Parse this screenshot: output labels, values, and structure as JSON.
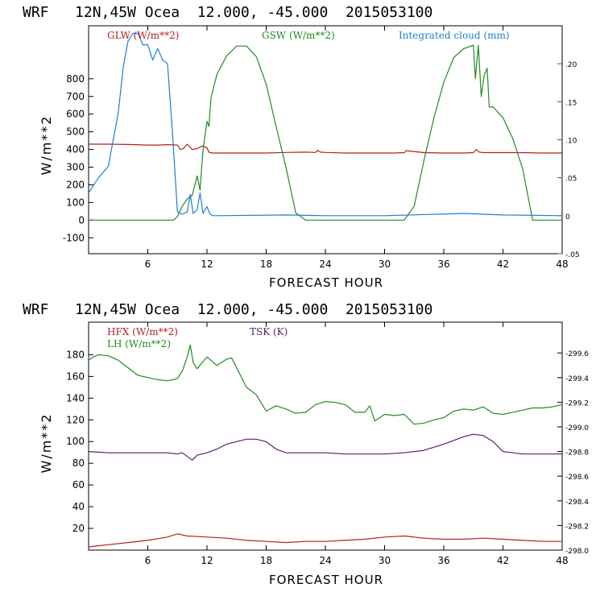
{
  "chart_data": [
    {
      "type": "line",
      "title": "WRF   12N,45W Ocea  12.000, -45.000  2015053100",
      "xlabel": "FORECAST HOUR",
      "ylabel": "W/m**2",
      "xlim": [
        0,
        48
      ],
      "ylim": [
        -190,
        1100
      ],
      "xticks": [
        6,
        12,
        18,
        24,
        30,
        36,
        42,
        48
      ],
      "yticks": [
        -100,
        0,
        100,
        200,
        300,
        400,
        500,
        600,
        700,
        800
      ],
      "right_axis": {
        "ylim": [
          -0.05,
          0.25
        ],
        "ticks": [
          -0.05,
          0,
          0.05,
          0.1,
          0.15,
          0.2
        ],
        "tick_labels": [
          "-.05",
          "0",
          ".05",
          ".10",
          ".15",
          ".20"
        ],
        "color": "#1f5fc0"
      },
      "series": [
        {
          "name": "GLW (W/m**2)",
          "color": "#b22222",
          "axis": "left",
          "x": [
            0,
            2,
            4,
            6,
            7,
            8,
            9,
            9.3,
            9.6,
            10,
            10.5,
            11,
            11.5,
            12,
            12.2,
            12.5,
            14,
            16,
            18,
            20,
            22,
            23,
            23.2,
            23.5,
            24,
            26,
            28,
            30,
            31,
            32,
            32.2,
            34,
            36,
            38,
            39,
            39.3,
            39.6,
            40,
            42,
            44,
            46,
            48
          ],
          "y": [
            430,
            430,
            428,
            425,
            425,
            427,
            425,
            400,
            405,
            430,
            400,
            405,
            420,
            410,
            385,
            380,
            380,
            380,
            380,
            383,
            385,
            383,
            395,
            385,
            383,
            380,
            380,
            380,
            380,
            382,
            393,
            382,
            380,
            380,
            382,
            400,
            385,
            382,
            382,
            382,
            380,
            380
          ]
        },
        {
          "name": "GSW (W/m**2)",
          "color": "#228b22",
          "axis": "left",
          "x": [
            0,
            8.6,
            9,
            9.5,
            10,
            10.5,
            11,
            11.3,
            11.6,
            12,
            12.2,
            12.4,
            13,
            14,
            15,
            16,
            17,
            18,
            19,
            20,
            21,
            22,
            32,
            33,
            34,
            35,
            36,
            37,
            38,
            39,
            39.2,
            39.5,
            39.8,
            40.1,
            40.4,
            40.6,
            41,
            42,
            43,
            44,
            45,
            48
          ],
          "y": [
            0,
            0,
            20,
            80,
            120,
            140,
            250,
            170,
            400,
            560,
            530,
            690,
            825,
            930,
            985,
            985,
            925,
            770,
            530,
            300,
            40,
            0,
            0,
            80,
            340,
            580,
            780,
            920,
            970,
            990,
            800,
            990,
            700,
            820,
            860,
            640,
            640,
            580,
            460,
            290,
            0,
            0
          ]
        },
        {
          "name": "Integrated cloud (mm)",
          "color": "#1e7fd6",
          "axis": "right",
          "x": [
            0,
            0.5,
            1,
            2,
            2.5,
            3,
            3.5,
            4,
            4.5,
            5,
            5.5,
            6,
            6.5,
            7,
            7.5,
            8,
            8.5,
            9,
            9.5,
            10,
            10.3,
            10.6,
            11,
            11.3,
            11.6,
            12,
            12.3,
            12.6,
            13,
            20,
            24,
            30,
            38,
            42,
            48
          ],
          "y": [
            0.03,
            0.04,
            0.05,
            0.065,
            0.1,
            0.135,
            0.195,
            0.23,
            0.24,
            0.24,
            0.225,
            0.225,
            0.205,
            0.22,
            0.205,
            0.2,
            0.11,
            0.005,
            0.002,
            0.005,
            0.028,
            0.003,
            0.008,
            0.03,
            0.003,
            0.012,
            0.002,
            0,
            0,
            0.001,
            0,
            0,
            0.003,
            0.001,
            0
          ]
        }
      ]
    },
    {
      "type": "line",
      "title": "WRF   12N,45W Ocea  12.000, -45.000  2015053100",
      "xlabel": "FORECAST HOUR",
      "ylabel": "W/m**2",
      "xlim": [
        0,
        48
      ],
      "ylim": [
        0,
        210
      ],
      "xticks": [
        6,
        12,
        18,
        24,
        30,
        36,
        42,
        48
      ],
      "yticks": [
        20,
        40,
        60,
        80,
        100,
        120,
        140,
        160,
        180
      ],
      "right_axis": {
        "ylim": [
          298.0,
          299.85
        ],
        "ticks": [
          298.0,
          298.2,
          298.4,
          298.6,
          298.8,
          299.0,
          299.2,
          299.4,
          299.6
        ],
        "tick_labels": [
          "298.0",
          "298.2",
          "298.4",
          "298.6",
          "298.8",
          "299.0",
          "299.2",
          "299.4",
          "299.6"
        ],
        "color": "#000000"
      },
      "series": [
        {
          "name": "HFX (W/m**2)",
          "color": "#b22222",
          "axis": "left",
          "x": [
            0,
            2,
            4,
            6,
            8,
            9,
            10,
            12,
            14,
            16,
            18,
            20,
            22,
            24,
            26,
            28,
            30,
            32,
            34,
            36,
            38,
            40,
            42,
            44,
            46,
            48
          ],
          "y": [
            3,
            5,
            7,
            9,
            12,
            15,
            13,
            12,
            11,
            9,
            8,
            7,
            8,
            8,
            9,
            10,
            12,
            13,
            11,
            10,
            10,
            11,
            10,
            9,
            8,
            8
          ]
        },
        {
          "name": "LH (W/m**2)",
          "color": "#228b22",
          "axis": "left",
          "x": [
            0,
            0.5,
            1,
            2,
            3,
            4,
            5,
            6,
            7,
            8,
            9,
            9.5,
            10,
            10.3,
            10.6,
            11,
            12,
            13,
            14,
            14.5,
            15,
            16,
            17,
            18,
            19,
            20,
            21,
            22,
            23,
            24,
            25,
            26,
            27,
            28,
            28.5,
            29,
            30,
            31,
            32,
            33,
            34,
            35,
            36,
            37,
            38,
            39,
            40,
            41,
            42,
            43,
            44,
            45,
            46,
            47,
            48
          ],
          "y": [
            175,
            178,
            180,
            179,
            175,
            168,
            161,
            159,
            157,
            156,
            158,
            165,
            178,
            189,
            173,
            167,
            178,
            170,
            176,
            177,
            168,
            150,
            143,
            128,
            133,
            130,
            126,
            127,
            134,
            137,
            136,
            134,
            127,
            127,
            133,
            119,
            125,
            124,
            125,
            116,
            117,
            120,
            122,
            128,
            130,
            129,
            132,
            126,
            125,
            127,
            129,
            131,
            131,
            132,
            134
          ]
        },
        {
          "name": "TSK (K)",
          "color": "#5b1f6b",
          "axis": "right",
          "x": [
            0,
            2,
            4,
            6,
            8,
            9,
            9.5,
            10,
            10.5,
            11,
            11.5,
            12,
            13,
            14,
            16,
            17,
            18,
            19,
            20,
            22,
            24,
            26,
            28,
            30,
            32,
            34,
            36,
            38,
            39,
            40,
            41,
            42,
            44,
            46,
            48
          ],
          "y": [
            298.8,
            298.79,
            298.79,
            298.79,
            298.79,
            298.78,
            298.79,
            298.76,
            298.73,
            298.77,
            298.78,
            298.79,
            298.82,
            298.86,
            298.9,
            298.9,
            298.88,
            298.82,
            298.79,
            298.79,
            298.79,
            298.78,
            298.78,
            298.78,
            298.79,
            298.81,
            298.86,
            298.92,
            298.94,
            298.93,
            298.88,
            298.8,
            298.78,
            298.78,
            298.78
          ]
        }
      ]
    }
  ]
}
